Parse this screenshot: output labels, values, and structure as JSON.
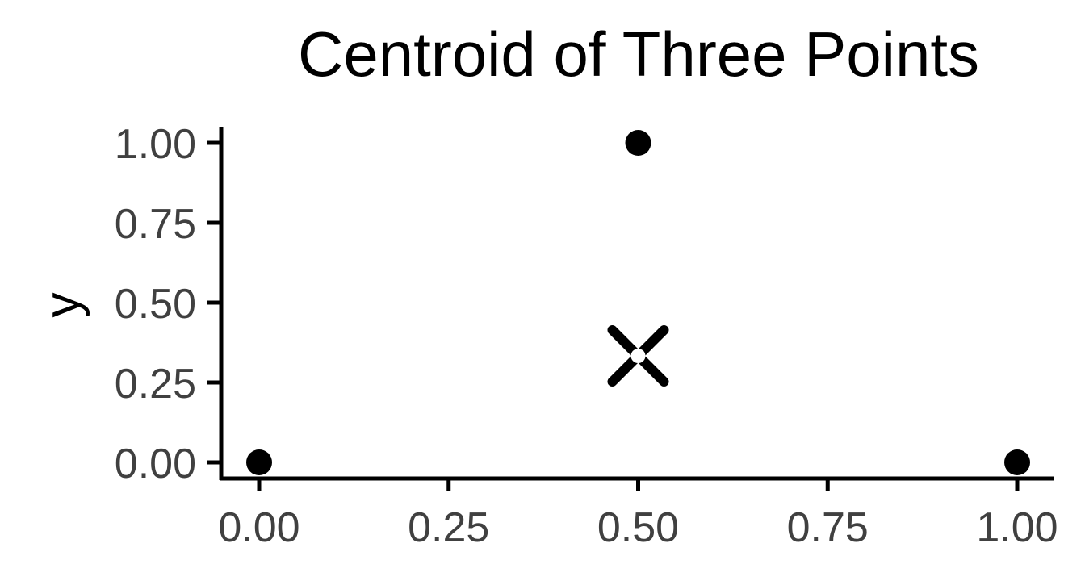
{
  "chart_data": {
    "type": "scatter",
    "title": "Centroid of Three Points",
    "xlabel": "",
    "ylabel": "y",
    "xlim": [
      0,
      1
    ],
    "ylim": [
      0,
      1
    ],
    "x_ticks": [
      0,
      0.25,
      0.5,
      0.75,
      1
    ],
    "x_tick_labels": [
      "0.00",
      "0.25",
      "0.50",
      "0.75",
      "1.00"
    ],
    "y_ticks": [
      0,
      0.25,
      0.5,
      0.75,
      1
    ],
    "y_tick_labels": [
      "0.00",
      "0.25",
      "0.50",
      "0.75",
      "1.00"
    ],
    "grid": false,
    "series": [
      {
        "marker": "circle",
        "color": "#000000",
        "points": [
          {
            "x": 0,
            "y": 0
          },
          {
            "x": 0.5,
            "y": 1
          },
          {
            "x": 1,
            "y": 0
          }
        ]
      },
      {
        "marker": "x",
        "color": "#000000",
        "points": [
          {
            "x": 0.5,
            "y": 0.3333
          }
        ]
      }
    ]
  }
}
